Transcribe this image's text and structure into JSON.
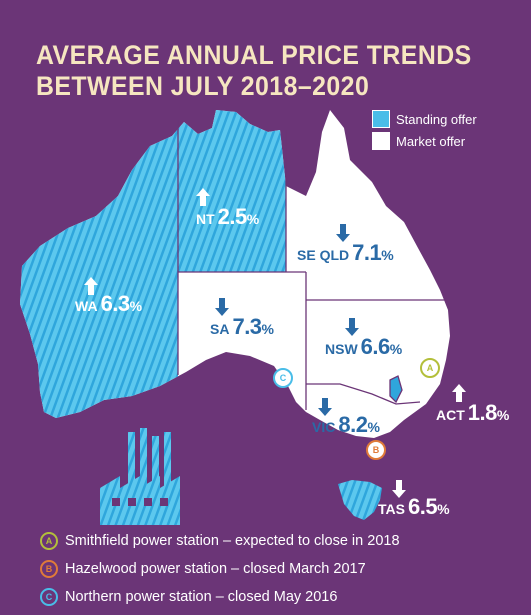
{
  "title": {
    "line1": "AVERAGE ANNUAL PRICE TRENDS",
    "line2": "BETWEEN JULY 2018–2020"
  },
  "legend": {
    "standing": {
      "label": "Standing offer",
      "color": "#49bde8"
    },
    "market": {
      "label": "Market offer",
      "color": "#ffffff"
    }
  },
  "regions": {
    "wa": {
      "name": "WA",
      "value": "6.3",
      "unit": "%",
      "direction": "up",
      "offer": "standing"
    },
    "nt": {
      "name": "NT",
      "value": "2.5",
      "unit": "%",
      "direction": "up",
      "offer": "standing"
    },
    "qld": {
      "name": "SE QLD",
      "value": "7.1",
      "unit": "%",
      "direction": "down",
      "offer": "market"
    },
    "sa": {
      "name": "SA",
      "value": "7.3",
      "unit": "%",
      "direction": "down",
      "offer": "market"
    },
    "nsw": {
      "name": "NSW",
      "value": "6.6",
      "unit": "%",
      "direction": "down",
      "offer": "market"
    },
    "vic": {
      "name": "VIC",
      "value": "8.2",
      "unit": "%",
      "direction": "down",
      "offer": "market"
    },
    "act": {
      "name": "ACT",
      "value": "1.8",
      "unit": "%",
      "direction": "up",
      "offer": "market"
    },
    "tas": {
      "name": "TAS",
      "value": "6.5",
      "unit": "%",
      "direction": "down",
      "offer": "standing"
    }
  },
  "notes": [
    {
      "letter": "A",
      "color": "#b3bf3a",
      "text": "Smithfield power station – expected to close in 2018"
    },
    {
      "letter": "B",
      "color": "#e07b39",
      "text": "Hazelwood power station – closed March 2017"
    },
    {
      "letter": "C",
      "color": "#49bde8",
      "text": "Northern power station – closed May 2016"
    }
  ],
  "colors": {
    "background": "#6b3577",
    "title": "#f6e6c0",
    "standing": "#49bde8",
    "market": "#ffffff",
    "value_text_dark": "#2a6aa6"
  },
  "icons": [
    "up-arrow-icon",
    "down-arrow-icon",
    "power-station-icon"
  ]
}
